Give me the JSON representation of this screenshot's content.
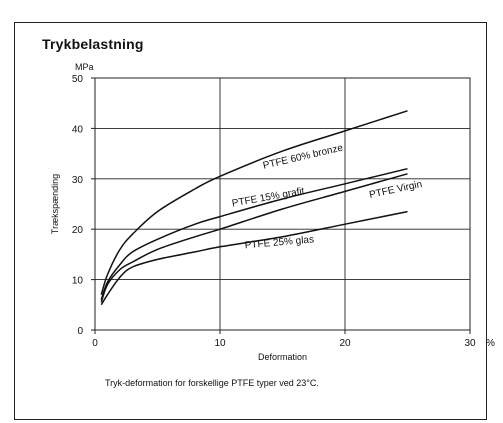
{
  "chart_data": {
    "type": "line",
    "title": "Trykbelastning",
    "y_unit": "MPa",
    "xlabel": "Deformation",
    "x_unit": "%",
    "ylabel": "Trækspænding",
    "caption": "Tryk-deformation for forskellige PTFE typer ved 23°C.",
    "xlim": [
      0,
      30
    ],
    "ylim": [
      0,
      50
    ],
    "xticks": [
      0,
      10,
      20,
      30
    ],
    "yticks": [
      0,
      10,
      20,
      30,
      40,
      50
    ],
    "grid": true,
    "series": [
      {
        "name": "PTFE 60% bronze",
        "x": [
          0.5,
          1,
          2,
          3,
          5,
          8,
          10,
          15,
          20,
          25
        ],
        "y": [
          7,
          11,
          16,
          19,
          23.5,
          28,
          30.5,
          35.5,
          39.5,
          43.5
        ]
      },
      {
        "name": "PTFE 15% grafit",
        "x": [
          0.5,
          1,
          2,
          3,
          5,
          8,
          10,
          15,
          20,
          25
        ],
        "y": [
          6,
          9.5,
          13,
          15.5,
          18,
          21,
          22.5,
          26,
          29,
          32
        ]
      },
      {
        "name": "PTFE Virgin",
        "x": [
          0.5,
          1,
          2,
          3,
          5,
          8,
          10,
          15,
          20,
          25
        ],
        "y": [
          5.5,
          9,
          12,
          13.5,
          16,
          18.5,
          20,
          24,
          27.5,
          31
        ]
      },
      {
        "name": "PTFE 25% glas",
        "x": [
          0.5,
          1,
          2,
          3,
          5,
          8,
          10,
          15,
          20,
          25
        ],
        "y": [
          5,
          7,
          10.5,
          12.5,
          14,
          15.5,
          16.5,
          18.5,
          21,
          23.5
        ]
      }
    ]
  }
}
